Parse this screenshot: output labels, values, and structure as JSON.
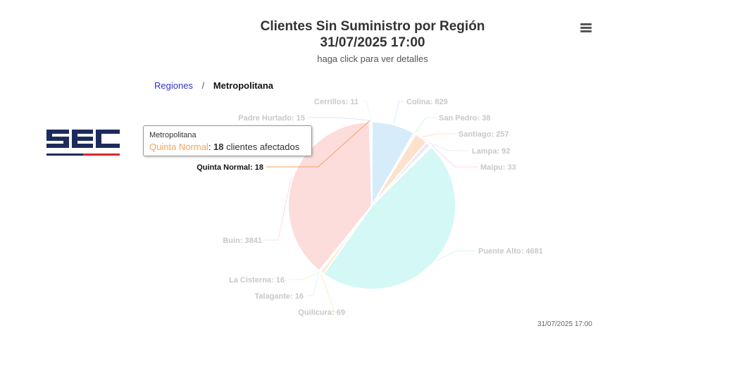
{
  "title": "Clientes Sin Suministro por Región",
  "timestamp": "31/07/2025 17:00",
  "subtitle": "haga click para ver detalles",
  "breadcrumb": {
    "parent": "Regiones",
    "separator": "/",
    "current": "Metropolitana"
  },
  "logo": {
    "text": "SEC",
    "primary_color": "#1d2b5c",
    "accent_color": "#d62b2b"
  },
  "menu_icon": "hamburger-menu-icon",
  "tooltip": {
    "header": "Metropolitana",
    "series": "Quinta Normal",
    "value": "18",
    "suffix": "clientes afectados"
  },
  "credits": "31/07/2025 17:00",
  "chart_data": {
    "type": "pie",
    "title": "Clientes Sin Suministro por Región",
    "slices": [
      {
        "name": "Colina",
        "value": 829,
        "label": "Colina: 829",
        "color": "#d6ecfb"
      },
      {
        "name": "San Pedro",
        "value": 38,
        "label": "San Pedro: 38",
        "color": "#d8f3e3"
      },
      {
        "name": "Santiago",
        "value": 257,
        "label": "Santiago: 257",
        "color": "#fde1cc"
      },
      {
        "name": "Lampa",
        "value": 92,
        "label": "Lampa: 92",
        "color": "#ebe8fb"
      },
      {
        "name": "Maipu",
        "value": 33,
        "label": "Maipu: 33",
        "color": "#fad8f0"
      },
      {
        "name": "Puente Alto",
        "value": 4681,
        "label": "Puente Alto: 4681",
        "color": "#d3f8f6"
      },
      {
        "name": "Quilicura",
        "value": 69,
        "label": "Quilicura: 69",
        "color": "#fdeacd"
      },
      {
        "name": "Talagante",
        "value": 16,
        "label": "Talagante: 16",
        "color": "#e0f1fb"
      },
      {
        "name": "La Cisterna",
        "value": 16,
        "label": "La Cisterna: 16",
        "color": "#e9f8d8"
      },
      {
        "name": "Buin",
        "value": 3841,
        "label": "Buin: 3841",
        "color": "#fddcdc"
      },
      {
        "name": "Quinta Normal",
        "value": 18,
        "label": "Quinta Normal: 18",
        "color": "#f7a35c"
      },
      {
        "name": "Padre Hurtado",
        "value": 15,
        "label": "Padre Hurtado: 15",
        "color": "#e2e3fb"
      },
      {
        "name": "Cerrillos",
        "value": 11,
        "label": "Cerrillos: 11",
        "color": "#e5fbf9"
      }
    ],
    "hidden_slice_note": "",
    "highlighted": "Quinta Normal"
  }
}
